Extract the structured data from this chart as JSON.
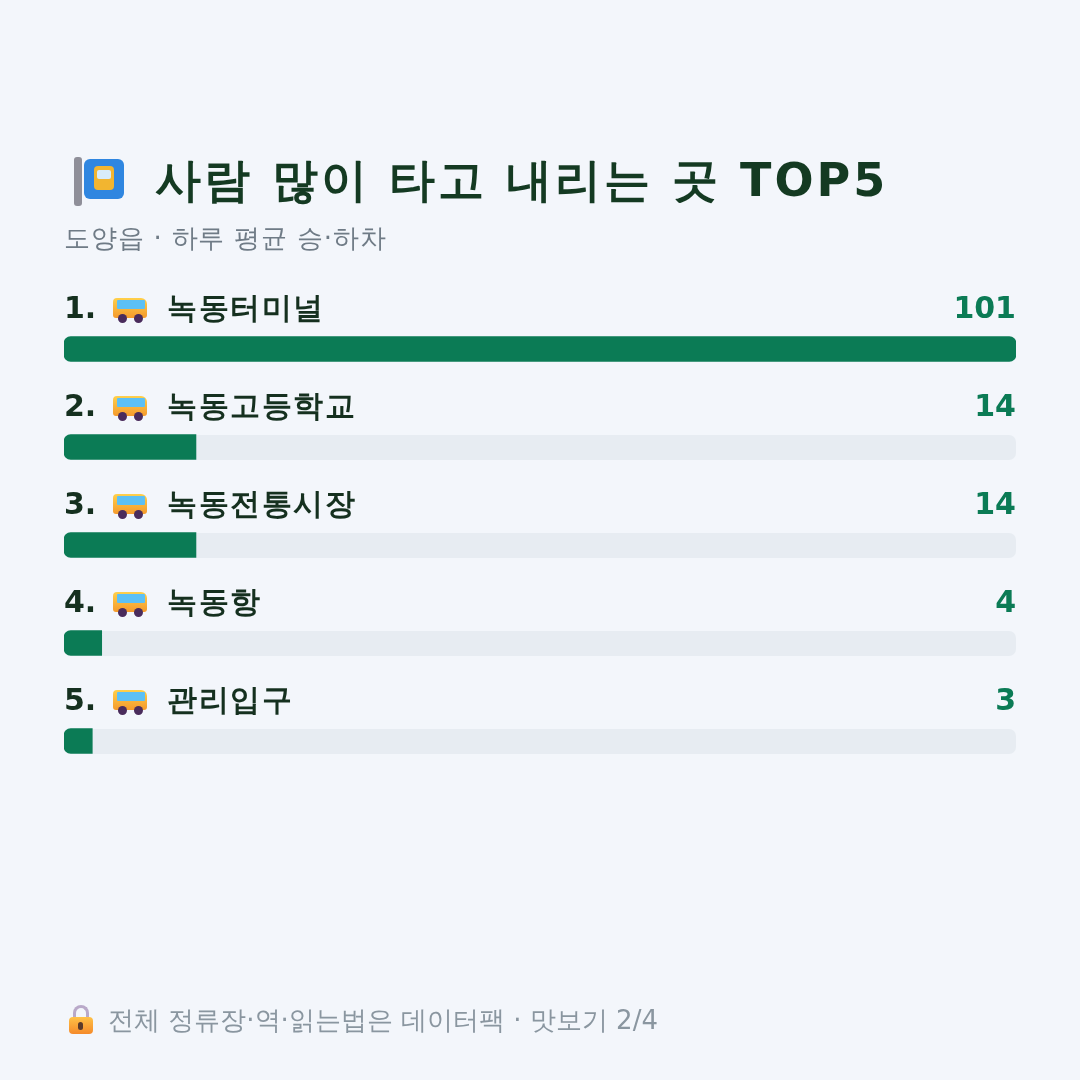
{
  "chart_data": {
    "type": "bar",
    "orientation": "horizontal",
    "title": "사람 많이 타고 내리는 곳 TOP5",
    "subtitle": "도양읍 · 하루 평균 승·하차",
    "categories": [
      "1. 녹동터미널",
      "2. 녹동고등학교",
      "3. 녹동전통시장",
      "4. 녹동항",
      "5. 관리입구"
    ],
    "values": [
      101,
      14,
      14,
      4,
      3
    ],
    "color": "#0b7b55",
    "xlim": [
      0,
      101
    ],
    "tick_labels": false,
    "data_labels": true,
    "annotations": [
      "전체 정류장·역·읽는법은 데이터팩 · 맛보기 2/4"
    ]
  }
}
